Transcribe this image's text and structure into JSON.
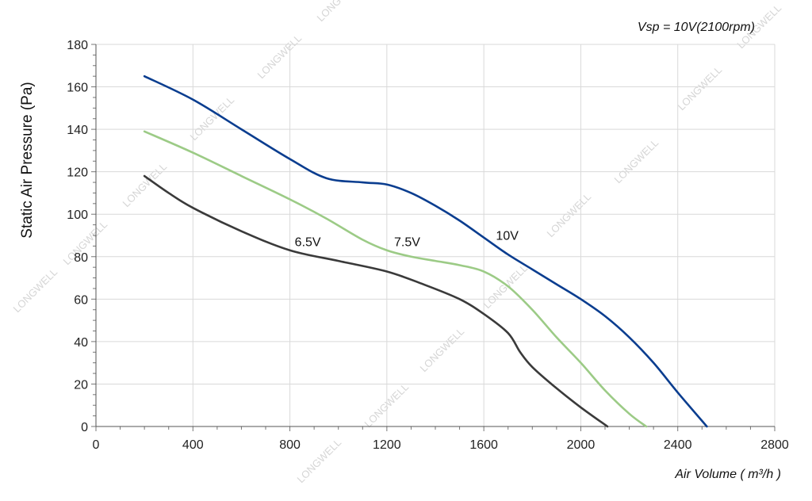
{
  "chart_data": {
    "type": "line",
    "annotation": "Vsp = 10V(2100rpm)",
    "xlabel": "Air Volume ( m³/h )",
    "ylabel": "Static Air Pressure  (Pa)",
    "xlim": [
      0,
      2800
    ],
    "ylim": [
      0,
      180
    ],
    "xticks": [
      0,
      400,
      800,
      1200,
      1600,
      2000,
      2400,
      2800
    ],
    "yticks": [
      0,
      20,
      40,
      60,
      80,
      100,
      120,
      140,
      160,
      180
    ],
    "grid": true,
    "watermark": "LONGWELL",
    "series": [
      {
        "name": "10V",
        "color": "#0a3d8f",
        "x": [
          200,
          400,
          600,
          800,
          950,
          1100,
          1200,
          1300,
          1400,
          1500,
          1600,
          1700,
          1800,
          1900,
          2000,
          2100,
          2200,
          2300,
          2400,
          2520
        ],
        "y": [
          165,
          154,
          140,
          126,
          117,
          115,
          114,
          110,
          104,
          97,
          89,
          81,
          74,
          67,
          60,
          52,
          42,
          30,
          16,
          0
        ]
      },
      {
        "name": "7.5V",
        "color": "#9ccb86",
        "x": [
          200,
          400,
          600,
          800,
          950,
          1100,
          1200,
          1300,
          1400,
          1500,
          1600,
          1700,
          1800,
          1900,
          2000,
          2100,
          2200,
          2270
        ],
        "y": [
          139,
          129,
          118,
          107,
          98,
          88,
          83,
          80,
          78,
          76,
          73,
          66,
          55,
          42,
          30,
          17,
          6,
          0
        ]
      },
      {
        "name": "6.5V",
        "color": "#3a3a3a",
        "x": [
          200,
          300,
          400,
          600,
          800,
          1000,
          1200,
          1350,
          1500,
          1600,
          1700,
          1750,
          1800,
          1900,
          2000,
          2110
        ],
        "y": [
          118,
          110,
          103,
          92,
          83,
          78,
          73,
          67,
          60,
          53,
          44,
          35,
          28,
          18,
          9,
          0
        ]
      }
    ]
  }
}
